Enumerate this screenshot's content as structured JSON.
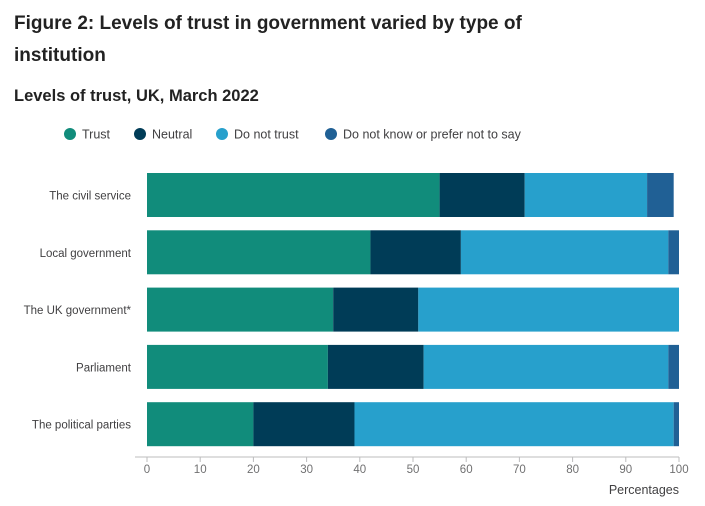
{
  "figure_title": "Figure 2: Levels of trust in government varied by type of institution",
  "chart_data": {
    "type": "bar",
    "orientation": "horizontal",
    "stacked": true,
    "title": "Levels of trust, UK, March 2022",
    "xlabel": "Percentages",
    "ylabel": "",
    "xlim": [
      0,
      100
    ],
    "x_ticks": [
      0,
      10,
      20,
      30,
      40,
      50,
      60,
      70,
      80,
      90,
      100
    ],
    "grid": false,
    "legend_position": "top",
    "categories": [
      "The civil service",
      "Local government",
      "The UK government*",
      "Parliament",
      "The political parties"
    ],
    "series": [
      {
        "name": "Trust",
        "color": "#118c7b",
        "values": [
          55,
          42,
          35,
          34,
          20
        ]
      },
      {
        "name": "Neutral",
        "color": "#003c57",
        "values": [
          16,
          17,
          16,
          18,
          19
        ]
      },
      {
        "name": "Do not trust",
        "color": "#27a0cc",
        "values": [
          23,
          39,
          49,
          46,
          60
        ]
      },
      {
        "name": "Do not know or prefer not to say",
        "color": "#206095",
        "values": [
          5,
          2,
          0,
          2,
          1
        ]
      }
    ]
  }
}
